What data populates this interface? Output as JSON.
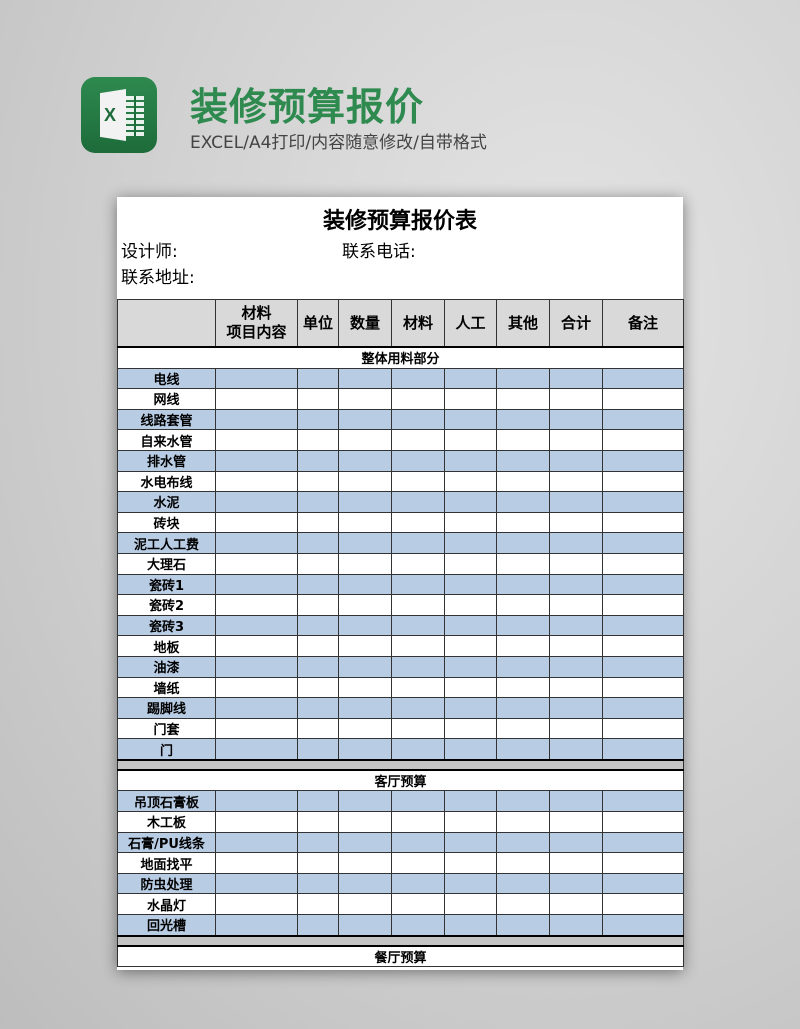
{
  "banner": {
    "title": "装修预算报价",
    "subtitle": "EXCEL/A4打印/内容随意修改/自带格式",
    "icon": "excel-icon",
    "icon_letter": "X"
  },
  "sheet": {
    "title": "装修预算报价表",
    "designer_label": "设计师:",
    "phone_label": "联系电话:",
    "address_label": "联系地址:",
    "headers": [
      "",
      "材料\n项目内容",
      "单位",
      "数量",
      "材料",
      "人工",
      "其他",
      "合计",
      "备注"
    ],
    "sections": [
      {
        "name": "整体用料部分",
        "items": [
          "电线",
          "网线",
          "线路套管",
          "自来水管",
          "排水管",
          "水电布线",
          "水泥",
          "砖块",
          "泥工人工费",
          "大理石",
          "瓷砖1",
          "瓷砖2",
          "瓷砖3",
          "地板",
          "油漆",
          "墙纸",
          "踢脚线",
          "门套",
          "门"
        ]
      },
      {
        "name": "客厅预算",
        "items": [
          "吊顶石膏板",
          "木工板",
          "石膏/PU线条",
          "地面找平",
          "防虫处理",
          "水晶灯",
          "回光槽"
        ]
      },
      {
        "name": "餐厅预算",
        "items": []
      }
    ]
  },
  "colors": {
    "accent": "#2e8a4f",
    "row_fill": "#b8cce4",
    "header_fill": "#d9d9d9"
  }
}
